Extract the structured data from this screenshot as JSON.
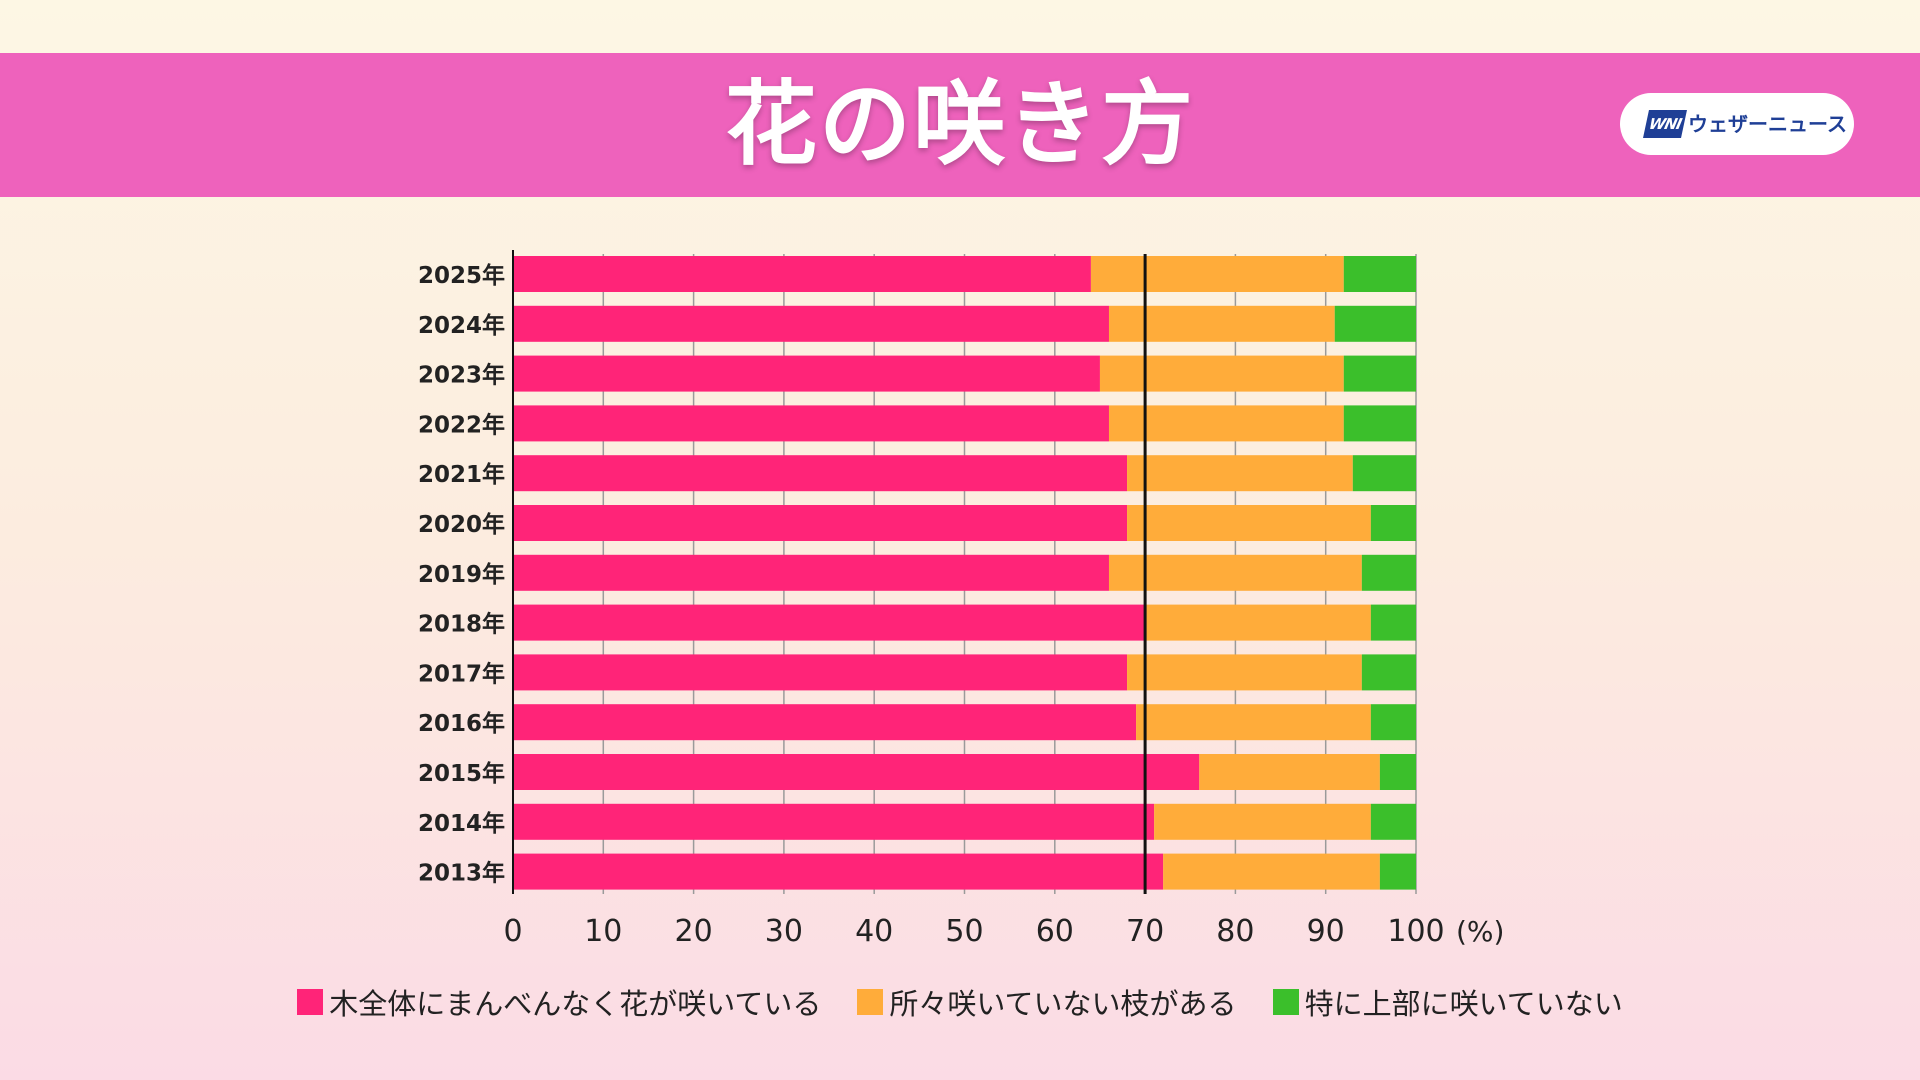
{
  "header": {
    "title": "花の咲き方",
    "logo_mark": "WNI",
    "logo_text": "ウェザーニュース"
  },
  "colors": {
    "banner": "#ee62bc",
    "even": "#ff2478",
    "partial": "#ffac3a",
    "top_not": "#3bbf2b"
  },
  "chart_data": {
    "type": "bar",
    "orientation": "horizontal",
    "stacked": true,
    "title": "花の咲き方",
    "categories": [
      "2025年",
      "2024年",
      "2023年",
      "2022年",
      "2021年",
      "2020年",
      "2019年",
      "2018年",
      "2017年",
      "2016年",
      "2015年",
      "2014年",
      "2013年"
    ],
    "series": [
      {
        "name": "木全体にまんべんなく花が咲いている",
        "color": "#ff2478",
        "values": [
          64,
          66,
          65,
          66,
          68,
          68,
          66,
          70,
          68,
          69,
          76,
          71,
          72
        ]
      },
      {
        "name": "所々咲いていない枝がある",
        "color": "#ffac3a",
        "values": [
          28,
          25,
          27,
          26,
          25,
          27,
          28,
          25,
          26,
          26,
          20,
          24,
          24
        ]
      },
      {
        "name": "特に上部に咲いていない",
        "color": "#3bbf2b",
        "values": [
          8,
          9,
          8,
          8,
          7,
          5,
          6,
          5,
          6,
          5,
          4,
          5,
          4
        ]
      }
    ],
    "xlim": [
      0,
      100
    ],
    "xticks": [
      0,
      10,
      20,
      30,
      40,
      50,
      60,
      70,
      80,
      90,
      100
    ],
    "x_unit": "(%)",
    "reference_line": 70,
    "grid": true,
    "legend_position": "bottom"
  }
}
